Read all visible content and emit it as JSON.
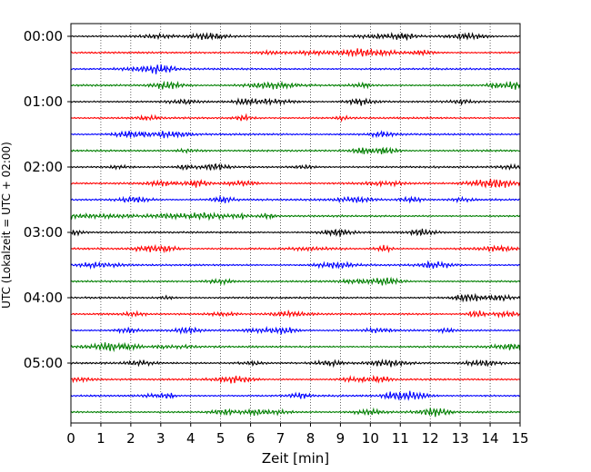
{
  "chart_data": {
    "type": "line",
    "title": "",
    "xlabel": "Zeit  [min]",
    "ylabel": "UTC (Lokalzeit = UTC + 02:00)",
    "xlim": [
      0,
      15
    ],
    "x_ticks": [
      "0",
      "1",
      "2",
      "3",
      "4",
      "5",
      "6",
      "7",
      "8",
      "9",
      "10",
      "11",
      "12",
      "13",
      "14",
      "15"
    ],
    "y_tick_labels": [
      "00:00",
      "01:00",
      "02:00",
      "03:00",
      "04:00",
      "05:00"
    ],
    "grid": "vertical dotted at each minute",
    "traces_per_hour": 4,
    "trace_minutes": 15,
    "trace_colors": [
      "#000000",
      "#ff0000",
      "#0000ff",
      "#007f00"
    ],
    "traces": [
      {
        "start": "00:00",
        "color": "#000000"
      },
      {
        "start": "00:15",
        "color": "#ff0000"
      },
      {
        "start": "00:30",
        "color": "#0000ff"
      },
      {
        "start": "00:45",
        "color": "#007f00"
      },
      {
        "start": "01:00",
        "color": "#000000"
      },
      {
        "start": "01:15",
        "color": "#ff0000"
      },
      {
        "start": "01:30",
        "color": "#0000ff"
      },
      {
        "start": "01:45",
        "color": "#007f00"
      },
      {
        "start": "02:00",
        "color": "#000000"
      },
      {
        "start": "02:15",
        "color": "#ff0000"
      },
      {
        "start": "02:30",
        "color": "#0000ff"
      },
      {
        "start": "02:45",
        "color": "#007f00"
      },
      {
        "start": "03:00",
        "color": "#000000"
      },
      {
        "start": "03:15",
        "color": "#ff0000"
      },
      {
        "start": "03:30",
        "color": "#0000ff"
      },
      {
        "start": "03:45",
        "color": "#007f00"
      },
      {
        "start": "04:00",
        "color": "#000000"
      },
      {
        "start": "04:15",
        "color": "#ff0000"
      },
      {
        "start": "04:30",
        "color": "#0000ff"
      },
      {
        "start": "04:45",
        "color": "#007f00"
      },
      {
        "start": "05:00",
        "color": "#000000"
      },
      {
        "start": "05:15",
        "color": "#ff0000"
      },
      {
        "start": "05:30",
        "color": "#0000ff"
      },
      {
        "start": "05:45",
        "color": "#007f00"
      }
    ]
  }
}
